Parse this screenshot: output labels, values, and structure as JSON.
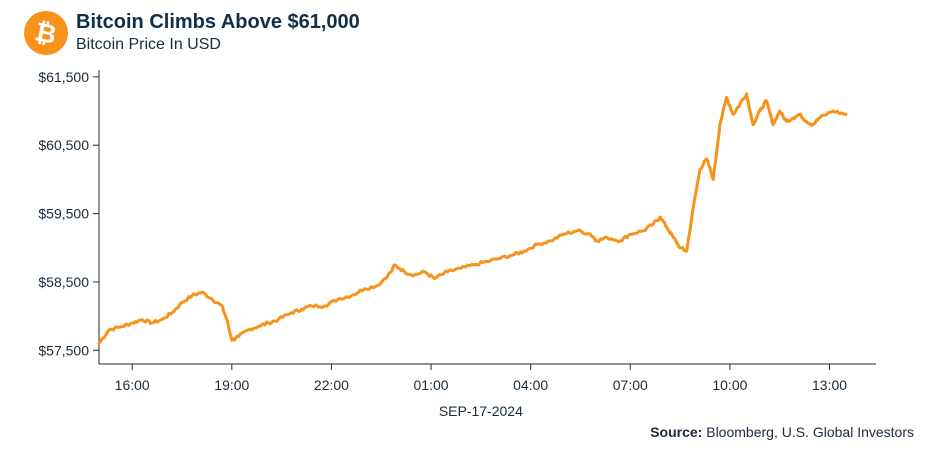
{
  "header": {
    "title": "Bitcoin Climbs Above $61,000",
    "subtitle": "Bitcoin Price In USD",
    "logo_icon": "bitcoin-logo-icon",
    "logo_glyph": "₿"
  },
  "source": {
    "label": "Source:",
    "text": "Bloomberg, U.S. Global Investors"
  },
  "colors": {
    "line": "#F7931A",
    "logo": "#F7931A",
    "axis": "#1a2b3c",
    "text": "#1a2b3c"
  },
  "chart_data": {
    "type": "line",
    "title": "Bitcoin Climbs Above $61,000",
    "subtitle": "Bitcoin Price In USD",
    "xlabel": "SEP-17-2024",
    "ylabel": "",
    "x_unit": "hours since 15:00",
    "x_tick_labels": [
      "16:00",
      "19:00",
      "22:00",
      "01:00",
      "04:00",
      "07:00",
      "10:00",
      "13:00"
    ],
    "x_ticks": [
      1,
      4,
      7,
      10,
      13,
      16,
      19,
      22
    ],
    "xlim": [
      0,
      23.4
    ],
    "y_tick_labels": [
      "$57,500",
      "$58,500",
      "$59,500",
      "$60,500",
      "$61,500"
    ],
    "y_ticks": [
      57500,
      58500,
      59500,
      60500,
      61500
    ],
    "ylim": [
      57300,
      61600
    ],
    "grid": false,
    "legend": "none",
    "series": [
      {
        "name": "Bitcoin",
        "x": [
          0,
          0.3,
          0.7,
          1.0,
          1.3,
          1.6,
          1.9,
          2.2,
          2.5,
          2.8,
          3.1,
          3.4,
          3.7,
          3.85,
          4.0,
          4.2,
          4.5,
          4.8,
          5.1,
          5.4,
          5.8,
          6.1,
          6.4,
          6.8,
          7.2,
          7.6,
          8.0,
          8.4,
          8.8,
          8.9,
          9.2,
          9.5,
          9.8,
          10.1,
          10.5,
          10.9,
          11.3,
          11.7,
          12.1,
          12.5,
          12.8,
          13.2,
          13.6,
          14.0,
          14.4,
          14.8,
          15.0,
          15.3,
          15.7,
          16.0,
          16.4,
          16.7,
          16.9,
          17.1,
          17.3,
          17.5,
          17.7,
          17.9,
          18.1,
          18.3,
          18.5,
          18.7,
          18.9,
          19.1,
          19.3,
          19.5,
          19.7,
          19.9,
          20.1,
          20.3,
          20.5,
          20.7,
          20.9,
          21.1,
          21.3,
          21.5,
          21.7,
          22.1,
          22.5
        ],
        "values": [
          57600,
          57800,
          57850,
          57900,
          57950,
          57900,
          57950,
          58050,
          58200,
          58300,
          58350,
          58250,
          58150,
          57950,
          57650,
          57700,
          57800,
          57850,
          57900,
          57950,
          58050,
          58100,
          58150,
          58150,
          58250,
          58300,
          58400,
          58450,
          58650,
          58750,
          58650,
          58600,
          58650,
          58550,
          58650,
          58700,
          58750,
          58800,
          58850,
          58900,
          58950,
          59050,
          59100,
          59200,
          59250,
          59200,
          59100,
          59150,
          59100,
          59200,
          59250,
          59350,
          59450,
          59300,
          59150,
          59000,
          58950,
          59600,
          60150,
          60300,
          60000,
          60800,
          61200,
          60950,
          61100,
          61250,
          60800,
          61000,
          61150,
          60800,
          61000,
          60850,
          60900,
          60950,
          60850,
          60800,
          60900,
          61000,
          60950
        ]
      }
    ]
  }
}
